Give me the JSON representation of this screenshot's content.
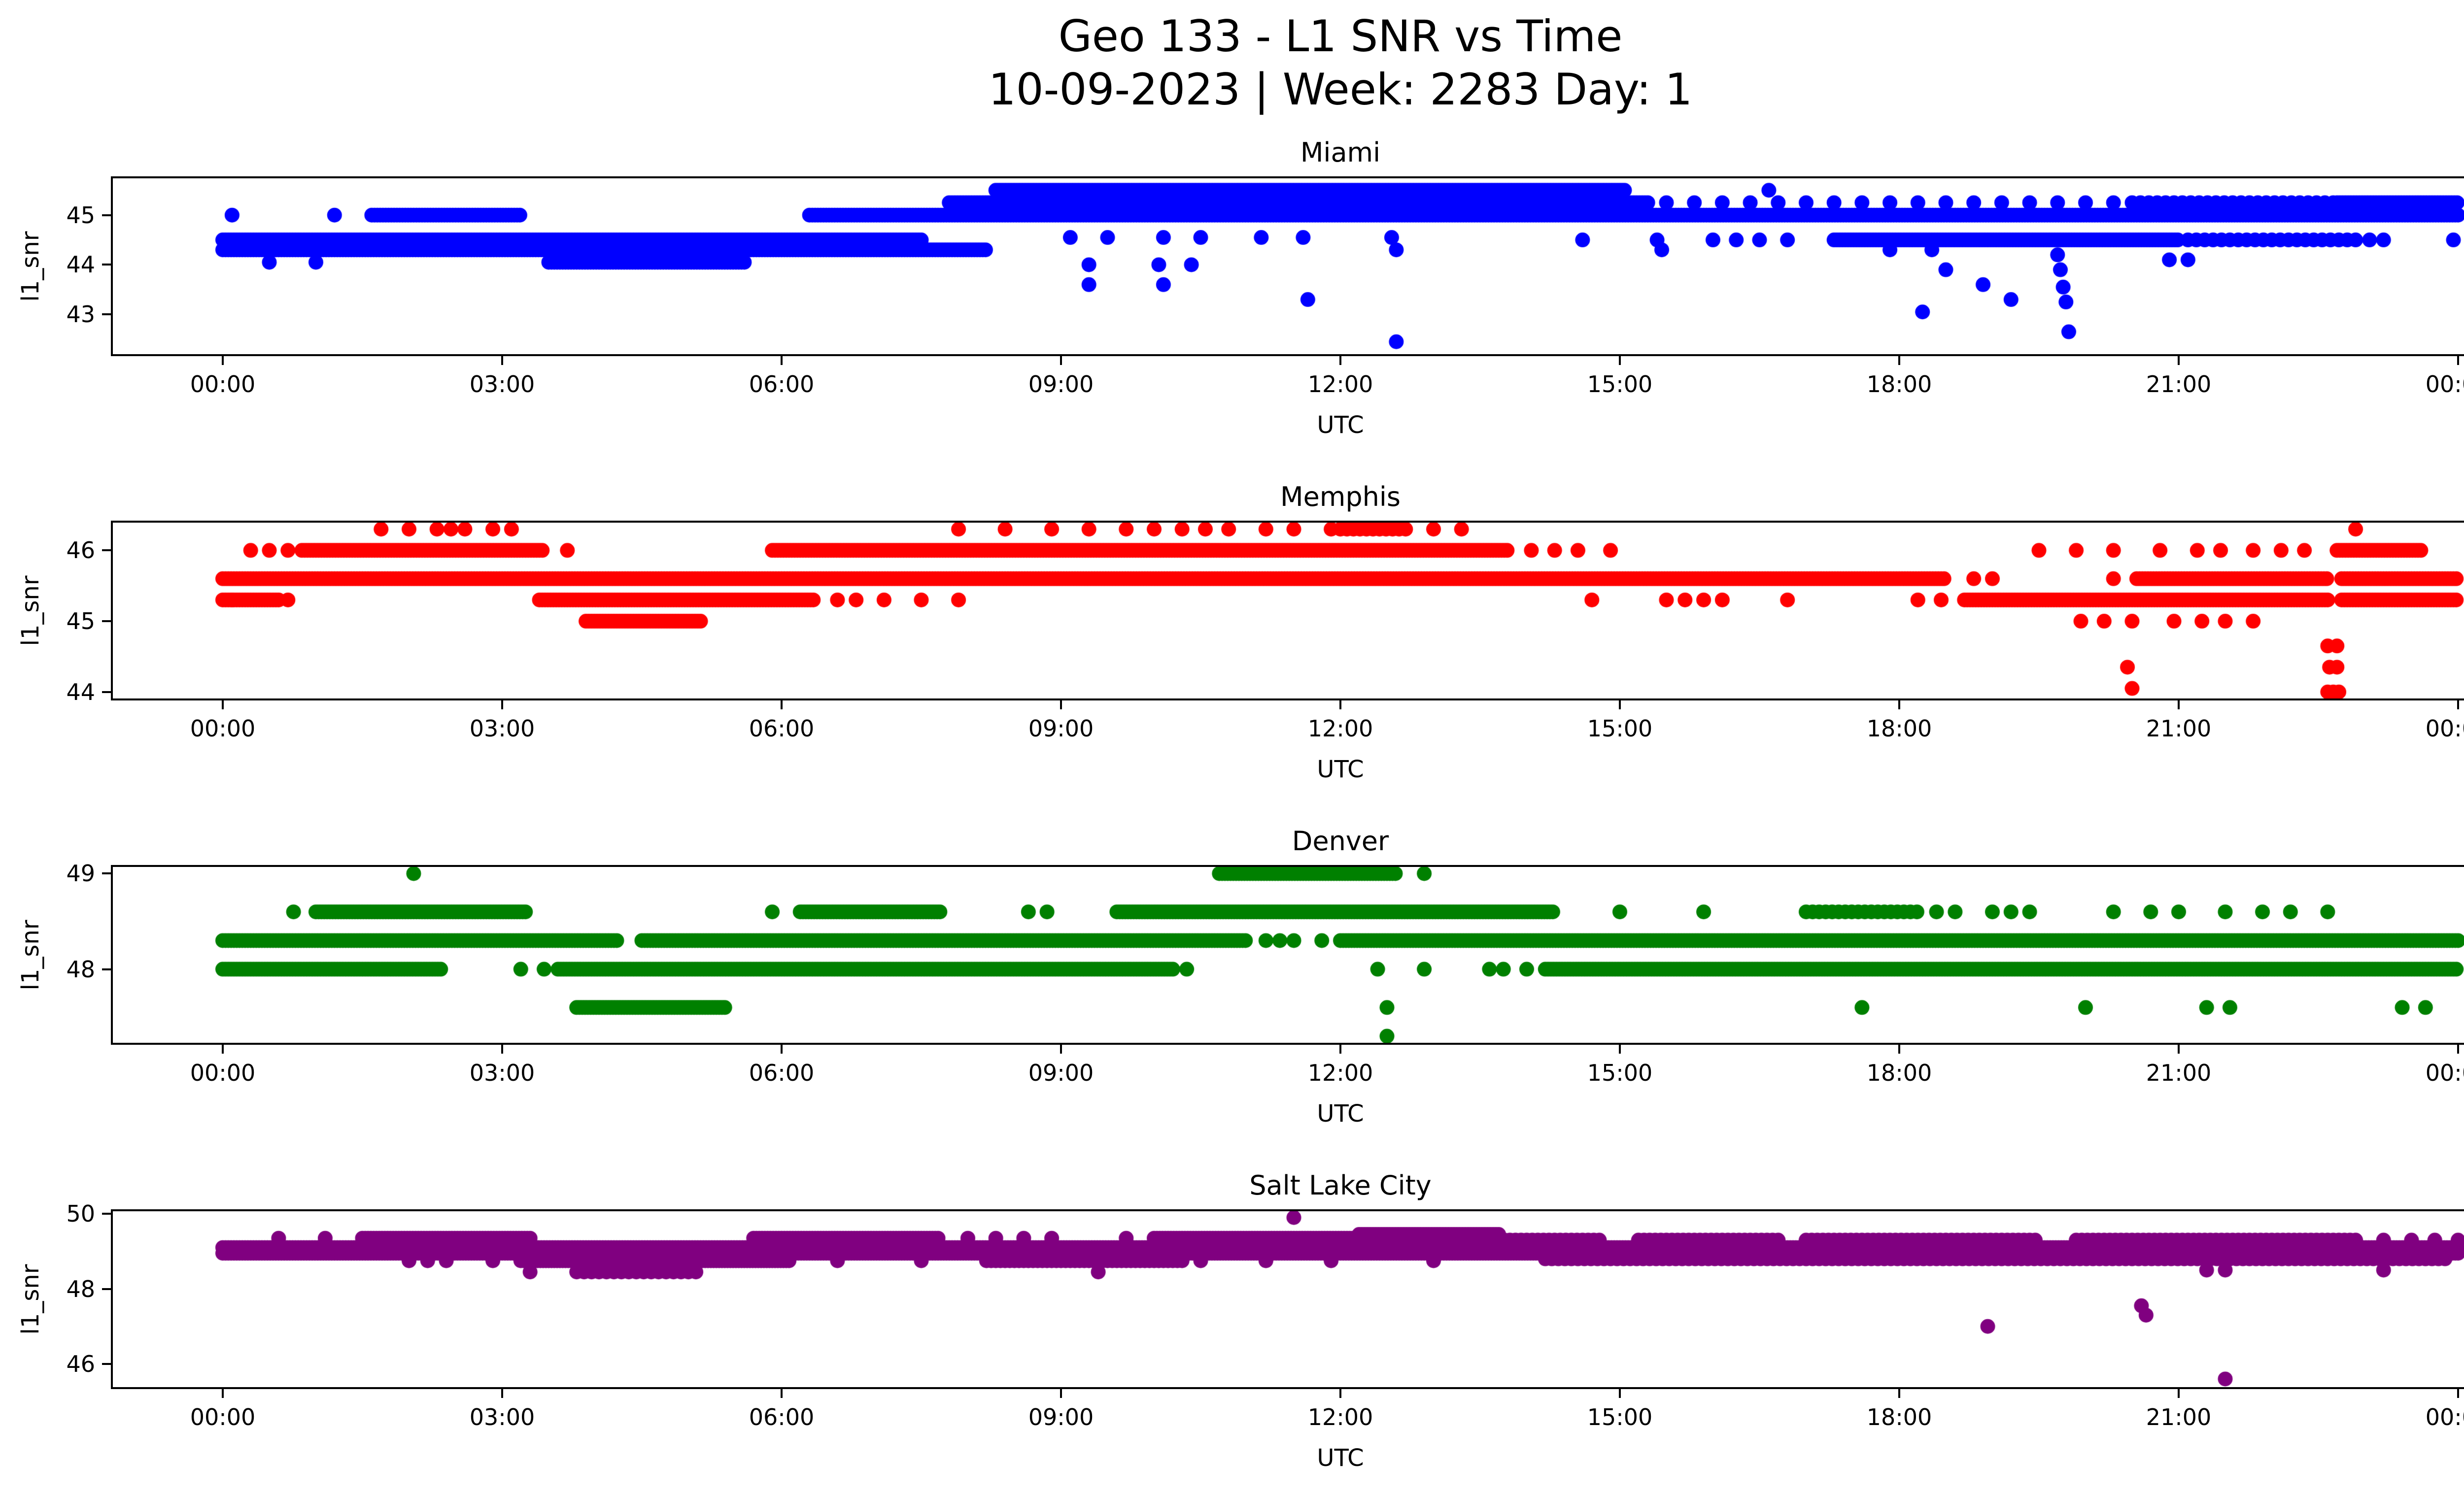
{
  "figure": {
    "title_line1": "Geo 133 - L1 SNR vs Time",
    "title_line2": "10-09-2023 | Week: 2283 Day: 1",
    "background_color": "#ffffff",
    "text_color": "#000000"
  },
  "chart_data": {
    "type": "scatter",
    "title": "Geo 133 - L1 SNR vs Time",
    "subtitle": "10-09-2023 | Week: 2283 Day: 1",
    "xlabel": "UTC",
    "ylabel": "l1_snr",
    "grid": false,
    "legend": "none",
    "x_unit": "hours UTC",
    "x_range_hours": [
      0,
      24
    ],
    "x_tick_hours": [
      0,
      3,
      6,
      9,
      12,
      15,
      18,
      21,
      24
    ],
    "x_tick_labels": [
      "00:00",
      "03:00",
      "06:00",
      "09:00",
      "12:00",
      "15:00",
      "18:00",
      "21:00",
      "00:00"
    ],
    "marker": "circle",
    "marker_radius_px": 15,
    "subplots": [
      {
        "title": "Miami",
        "color": "#0000ff",
        "ylim": [
          42.16,
          45.78
        ],
        "yticks": [
          43,
          44,
          45
        ],
        "runs": [
          [
            0.0,
            7.5,
            44.5
          ],
          [
            0.0,
            8.2,
            44.3
          ],
          [
            3.5,
            5.6,
            44.05
          ],
          [
            1.6,
            3.2,
            45.0
          ],
          [
            6.3,
            24.0,
            45.0
          ],
          [
            7.8,
            15.3,
            45.25
          ],
          [
            15.5,
            20.4,
            45.25,
            0.3
          ],
          [
            20.5,
            22.7,
            45.25,
            0.09
          ],
          [
            22.7,
            24.0,
            45.25
          ],
          [
            8.3,
            15.05,
            45.5
          ],
          [
            17.3,
            21.0,
            44.5
          ],
          [
            21.1,
            22.85,
            44.5,
            0.09
          ]
        ],
        "points": [
          [
            0.1,
            45.0
          ],
          [
            1.2,
            45.0
          ],
          [
            16.6,
            45.5
          ],
          [
            0.5,
            44.05
          ],
          [
            1.0,
            44.05
          ],
          [
            9.1,
            44.55
          ],
          [
            9.5,
            44.55
          ],
          [
            10.1,
            44.55
          ],
          [
            10.5,
            44.55
          ],
          [
            11.15,
            44.55
          ],
          [
            11.6,
            44.55
          ],
          [
            12.55,
            44.55
          ],
          [
            12.6,
            44.3
          ],
          [
            14.6,
            44.5
          ],
          [
            15.4,
            44.5
          ],
          [
            16.0,
            44.5
          ],
          [
            16.25,
            44.5
          ],
          [
            16.5,
            44.5
          ],
          [
            16.8,
            44.5
          ],
          [
            22.9,
            44.5
          ],
          [
            23.05,
            44.5
          ],
          [
            23.2,
            44.5
          ],
          [
            23.95,
            44.5
          ],
          [
            15.45,
            44.3
          ],
          [
            17.9,
            44.3
          ],
          [
            18.35,
            44.3
          ],
          [
            20.9,
            44.1
          ],
          [
            21.1,
            44.1
          ],
          [
            9.3,
            44.0
          ],
          [
            10.05,
            44.0
          ],
          [
            10.4,
            44.0
          ],
          [
            9.3,
            43.6
          ],
          [
            10.1,
            43.6
          ],
          [
            11.65,
            43.3
          ],
          [
            12.6,
            42.45
          ],
          [
            18.25,
            43.05
          ],
          [
            18.5,
            43.9
          ],
          [
            18.9,
            43.6
          ],
          [
            19.2,
            43.3
          ],
          [
            19.7,
            44.2
          ],
          [
            19.73,
            43.9
          ],
          [
            19.76,
            43.55
          ],
          [
            19.79,
            43.25
          ],
          [
            19.82,
            42.65
          ]
        ]
      },
      {
        "title": "Memphis",
        "color": "#ff0000",
        "ylim": [
          43.88,
          46.42
        ],
        "yticks": [
          44,
          45,
          46
        ],
        "runs": [
          [
            0.85,
            3.45,
            46.0
          ],
          [
            5.9,
            13.8,
            46.0
          ],
          [
            22.7,
            23.6,
            46.0
          ],
          [
            12.0,
            12.7,
            46.3,
            0.07
          ],
          [
            0.0,
            18.5,
            45.6
          ],
          [
            20.55,
            22.6,
            45.6
          ],
          [
            22.75,
            24.0,
            45.6
          ],
          [
            0.0,
            0.6,
            45.3
          ],
          [
            3.4,
            6.35,
            45.3
          ],
          [
            18.7,
            22.6,
            45.3
          ],
          [
            22.75,
            24.0,
            45.3
          ],
          [
            3.9,
            5.15,
            45.0
          ]
        ],
        "points": [
          [
            1.7,
            46.3
          ],
          [
            2.0,
            46.3
          ],
          [
            2.3,
            46.3
          ],
          [
            2.45,
            46.3
          ],
          [
            2.6,
            46.3
          ],
          [
            2.9,
            46.3
          ],
          [
            3.1,
            46.3
          ],
          [
            7.9,
            46.3
          ],
          [
            8.4,
            46.3
          ],
          [
            8.9,
            46.3
          ],
          [
            9.3,
            46.3
          ],
          [
            9.7,
            46.3
          ],
          [
            10.0,
            46.3
          ],
          [
            10.3,
            46.3
          ],
          [
            10.55,
            46.3
          ],
          [
            10.8,
            46.3
          ],
          [
            11.2,
            46.3
          ],
          [
            11.5,
            46.3
          ],
          [
            11.9,
            46.3
          ],
          [
            13.0,
            46.3
          ],
          [
            13.3,
            46.3
          ],
          [
            22.9,
            46.3
          ],
          [
            0.3,
            46.0
          ],
          [
            0.5,
            46.0
          ],
          [
            0.7,
            46.0
          ],
          [
            3.7,
            46.0
          ],
          [
            14.05,
            46.0
          ],
          [
            14.3,
            46.0
          ],
          [
            14.55,
            46.0
          ],
          [
            14.9,
            46.0
          ],
          [
            19.5,
            46.0
          ],
          [
            19.9,
            46.0
          ],
          [
            20.3,
            46.0
          ],
          [
            20.8,
            46.0
          ],
          [
            21.2,
            46.0
          ],
          [
            21.45,
            46.0
          ],
          [
            21.8,
            46.0
          ],
          [
            22.1,
            46.0
          ],
          [
            22.35,
            46.0
          ],
          [
            18.8,
            45.6
          ],
          [
            19.0,
            45.6
          ],
          [
            20.3,
            45.6
          ],
          [
            0.7,
            45.3
          ],
          [
            6.6,
            45.3
          ],
          [
            6.8,
            45.3
          ],
          [
            7.1,
            45.3
          ],
          [
            7.5,
            45.3
          ],
          [
            7.9,
            45.3
          ],
          [
            14.7,
            45.3
          ],
          [
            15.5,
            45.3
          ],
          [
            15.7,
            45.3
          ],
          [
            15.9,
            45.3
          ],
          [
            16.1,
            45.3
          ],
          [
            16.8,
            45.3
          ],
          [
            18.2,
            45.3
          ],
          [
            18.45,
            45.3
          ],
          [
            0.1,
            45.3
          ],
          [
            19.95,
            45.0
          ],
          [
            20.2,
            45.0
          ],
          [
            20.5,
            45.0
          ],
          [
            20.95,
            45.0
          ],
          [
            21.25,
            45.0
          ],
          [
            21.5,
            45.0
          ],
          [
            21.8,
            45.0
          ],
          [
            20.45,
            44.35
          ],
          [
            20.5,
            44.05
          ],
          [
            22.6,
            44.65
          ],
          [
            22.7,
            44.65
          ],
          [
            22.62,
            44.35
          ],
          [
            22.7,
            44.35
          ],
          [
            22.6,
            44.0
          ],
          [
            22.66,
            44.0
          ],
          [
            22.72,
            44.0
          ]
        ]
      },
      {
        "title": "Denver",
        "color": "#008000",
        "ylim": [
          47.21,
          49.09
        ],
        "yticks": [
          48,
          49
        ],
        "runs": [
          [
            10.7,
            12.6,
            49.0
          ],
          [
            1.0,
            3.25,
            48.6
          ],
          [
            6.2,
            7.7,
            48.6
          ],
          [
            9.6,
            14.3,
            48.6
          ],
          [
            17.0,
            18.2,
            48.6,
            0.07
          ],
          [
            0.0,
            4.25,
            48.3
          ],
          [
            4.5,
            11.0,
            48.3
          ],
          [
            12.0,
            24.0,
            48.3
          ],
          [
            0.0,
            2.35,
            48.0
          ],
          [
            3.6,
            10.2,
            48.0
          ],
          [
            14.2,
            24.0,
            48.0
          ],
          [
            3.8,
            5.4,
            47.6
          ]
        ],
        "points": [
          [
            2.05,
            49.0
          ],
          [
            12.9,
            49.0
          ],
          [
            0.76,
            48.6
          ],
          [
            5.9,
            48.6
          ],
          [
            8.65,
            48.6
          ],
          [
            8.85,
            48.6
          ],
          [
            15.0,
            48.6
          ],
          [
            15.9,
            48.6
          ],
          [
            18.4,
            48.6
          ],
          [
            18.6,
            48.6
          ],
          [
            19.0,
            48.6
          ],
          [
            19.2,
            48.6
          ],
          [
            19.4,
            48.6
          ],
          [
            20.3,
            48.6
          ],
          [
            20.7,
            48.6
          ],
          [
            21.0,
            48.6
          ],
          [
            21.5,
            48.6
          ],
          [
            21.9,
            48.6
          ],
          [
            22.2,
            48.6
          ],
          [
            22.6,
            48.6
          ],
          [
            11.2,
            48.3
          ],
          [
            11.35,
            48.3
          ],
          [
            11.5,
            48.3
          ],
          [
            11.8,
            48.3
          ],
          [
            3.2,
            48.0
          ],
          [
            3.45,
            48.0
          ],
          [
            10.35,
            48.0
          ],
          [
            12.4,
            48.0
          ],
          [
            12.9,
            48.0
          ],
          [
            13.6,
            48.0
          ],
          [
            13.75,
            48.0
          ],
          [
            14.0,
            48.0
          ],
          [
            12.5,
            47.6
          ],
          [
            17.6,
            47.6
          ],
          [
            20.0,
            47.6
          ],
          [
            21.3,
            47.6
          ],
          [
            21.55,
            47.6
          ],
          [
            23.4,
            47.6
          ],
          [
            23.65,
            47.6
          ],
          [
            12.5,
            47.3
          ]
        ]
      },
      {
        "title": "Salt Lake City",
        "color": "#800080",
        "ylim": [
          45.33,
          50.12
        ],
        "yticks": [
          46,
          48,
          50
        ],
        "runs": [
          [
            12.2,
            13.7,
            49.45
          ],
          [
            1.5,
            3.3,
            49.35
          ],
          [
            5.7,
            7.7,
            49.35
          ],
          [
            10.0,
            12.2,
            49.35
          ],
          [
            13.7,
            14.8,
            49.3,
            0.06
          ],
          [
            15.2,
            16.75,
            49.3,
            0.06
          ],
          [
            17.0,
            19.5,
            49.3,
            0.06
          ],
          [
            19.9,
            22.9,
            49.3,
            0.06
          ],
          [
            0.0,
            24.0,
            49.1
          ],
          [
            0.0,
            24.0,
            48.95
          ],
          [
            3.2,
            6.1,
            48.75
          ],
          [
            8.2,
            10.3,
            48.75,
            0.05
          ],
          [
            14.2,
            23.9,
            48.8,
            0.07
          ],
          [
            3.8,
            5.1,
            48.45,
            0.08
          ]
        ],
        "points": [
          [
            11.5,
            49.9
          ],
          [
            0.6,
            49.35
          ],
          [
            1.1,
            49.35
          ],
          [
            8.0,
            49.35
          ],
          [
            8.3,
            49.35
          ],
          [
            8.6,
            49.35
          ],
          [
            8.9,
            49.35
          ],
          [
            9.7,
            49.35
          ],
          [
            23.2,
            49.3
          ],
          [
            23.5,
            49.3
          ],
          [
            23.75,
            49.3
          ],
          [
            24.0,
            49.3
          ],
          [
            2.0,
            48.75
          ],
          [
            2.2,
            48.75
          ],
          [
            2.4,
            48.75
          ],
          [
            2.9,
            48.75
          ],
          [
            6.6,
            48.75
          ],
          [
            7.5,
            48.75
          ],
          [
            10.5,
            48.75
          ],
          [
            11.2,
            48.75
          ],
          [
            11.9,
            48.75
          ],
          [
            13.0,
            48.75
          ],
          [
            3.3,
            48.45
          ],
          [
            9.4,
            48.45
          ],
          [
            21.3,
            48.5
          ],
          [
            21.5,
            48.5
          ],
          [
            23.2,
            48.5
          ],
          [
            18.95,
            47.0
          ],
          [
            20.6,
            47.55
          ],
          [
            20.65,
            47.3
          ],
          [
            21.5,
            45.6
          ]
        ]
      }
    ]
  }
}
